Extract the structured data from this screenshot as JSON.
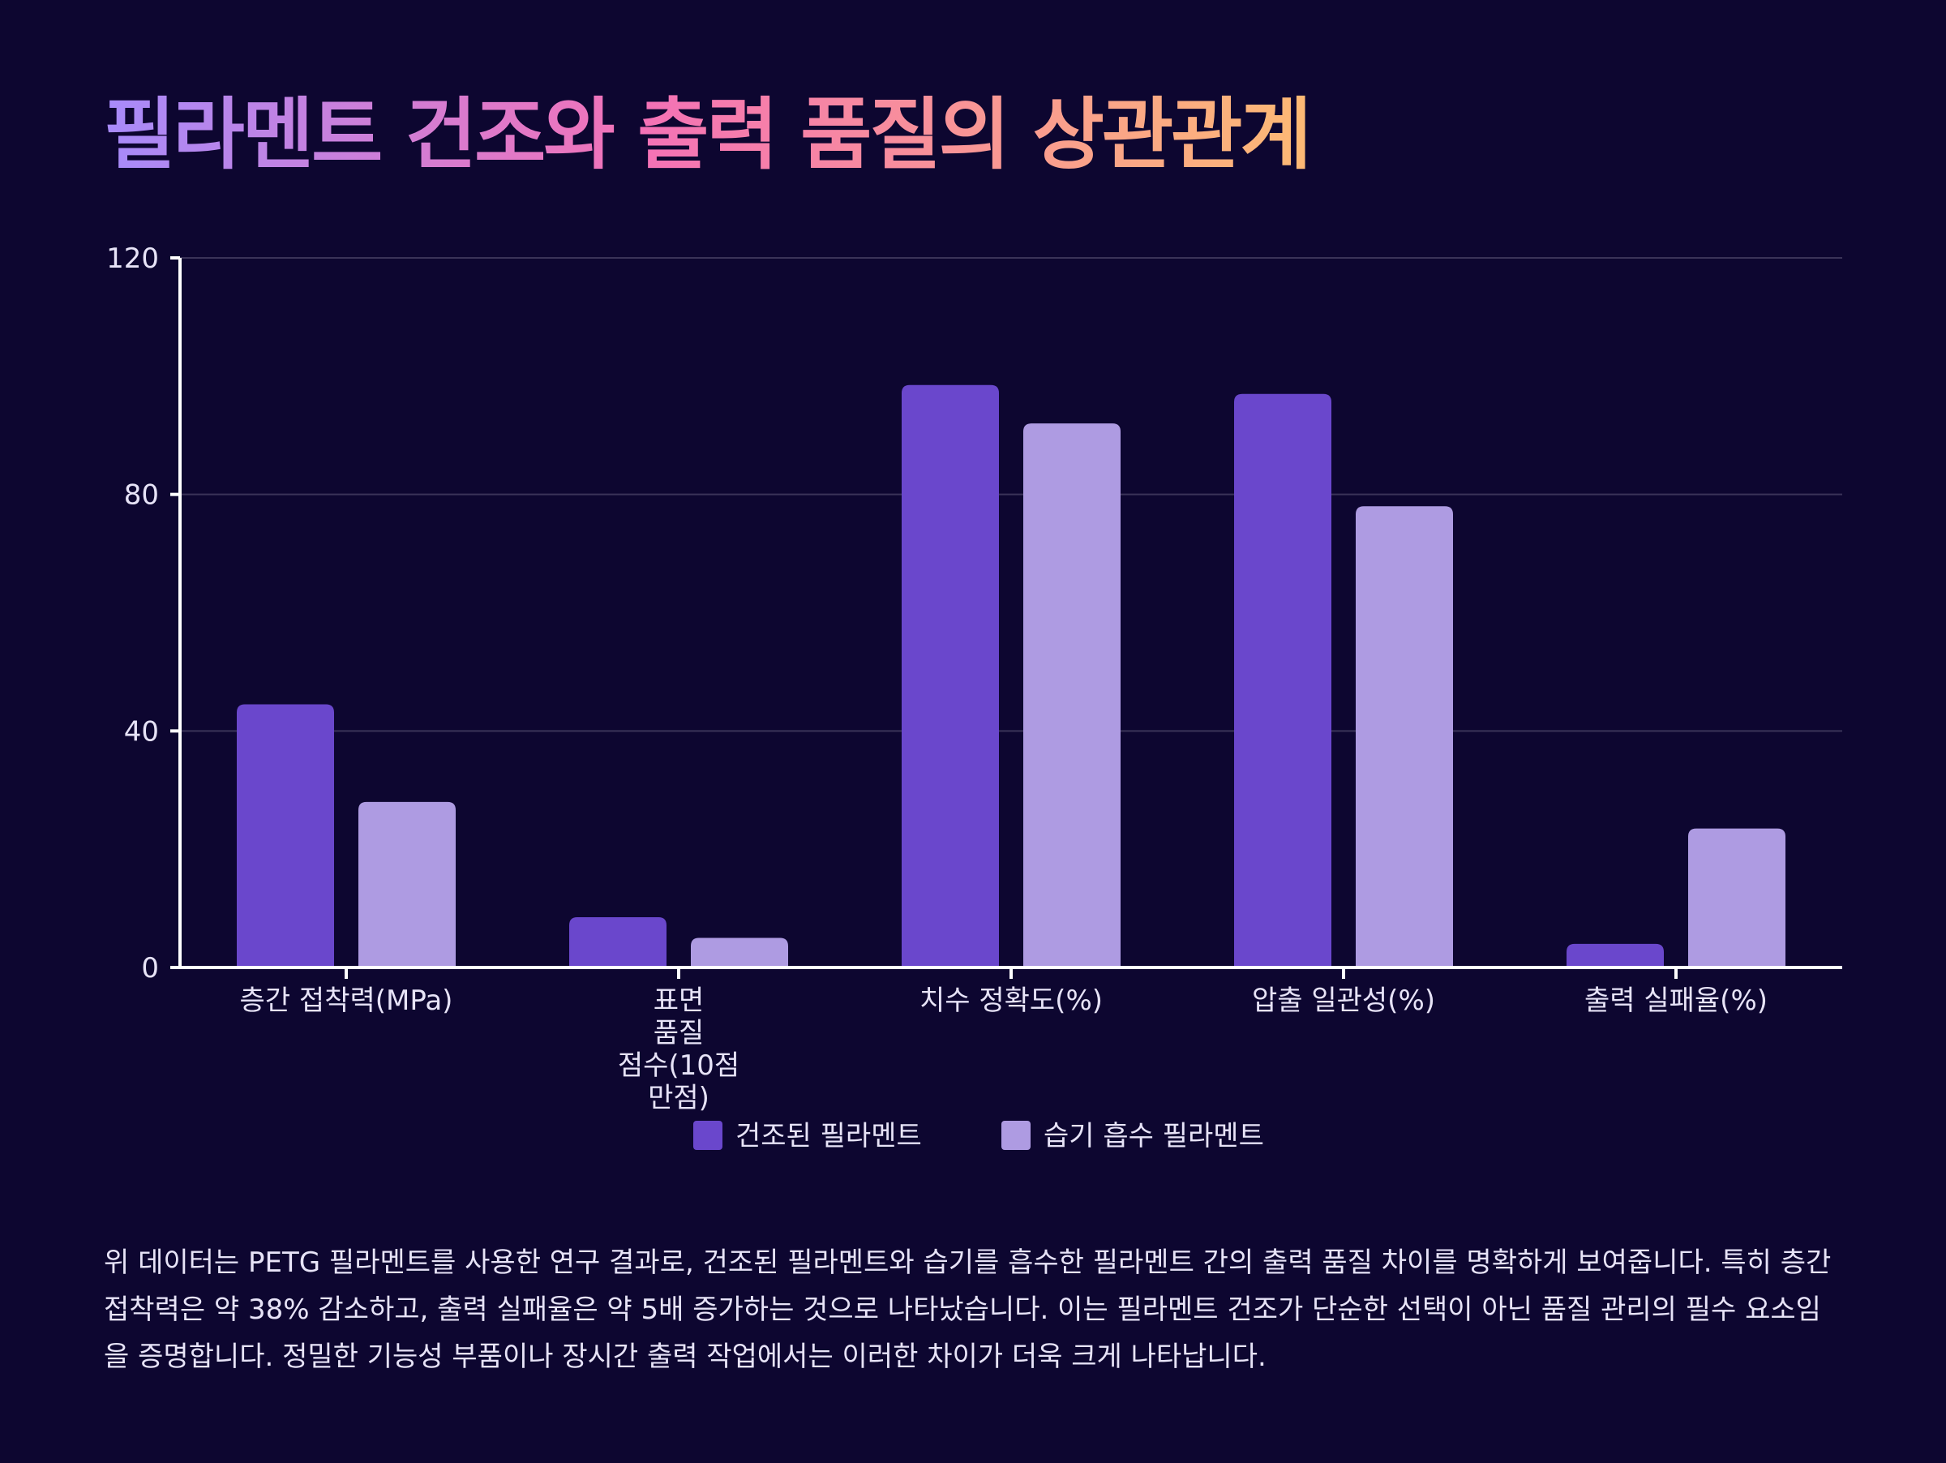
{
  "title": "필라멘트 건조와 출력 품질의 상관관계",
  "colors": {
    "background": "#0d0630",
    "dried": "#6a47cc",
    "humid": "#ae9be2",
    "axis": "#ffffff",
    "grid": "#3a3358",
    "text": "#e7e3f7"
  },
  "chart_data": {
    "type": "bar",
    "categories": [
      [
        "층간 접착력(MPa)"
      ],
      [
        "표면",
        "품질",
        "점수(10점",
        "만점)"
      ],
      [
        "치수 정확도(%)"
      ],
      [
        "압출 일관성(%)"
      ],
      [
        "출력 실패율(%)"
      ]
    ],
    "series": [
      {
        "name": "건조된 필라멘트",
        "values": [
          44.5,
          8.5,
          98.5,
          97,
          4
        ],
        "color": "#6a47cc"
      },
      {
        "name": "습기 흡수 필라멘트",
        "values": [
          28,
          5,
          92,
          78,
          23.5
        ],
        "color": "#ae9be2"
      }
    ],
    "ylim": [
      0,
      120
    ],
    "yticks": [
      0,
      40,
      80,
      120
    ],
    "grid": true,
    "legend": "bottom-center",
    "xlabel": "",
    "ylabel": ""
  },
  "description": "위 데이터는 PETG 필라멘트를 사용한 연구 결과로, 건조된 필라멘트와 습기를 흡수한 필라멘트 간의 출력 품질 차이를 명확하게 보여줍니다. 특히 층간 접착력은 약 38% 감소하고, 출력 실패율은 약 5배 증가하는 것으로 나타났습니다. 이는 필라멘트 건조가 단순한 선택이 아닌 품질 관리의 필수 요소임을 증명합니다. 정밀한 기능성 부품이나 장시간 출력 작업에서는 이러한 차이가 더욱 크게 나타납니다."
}
